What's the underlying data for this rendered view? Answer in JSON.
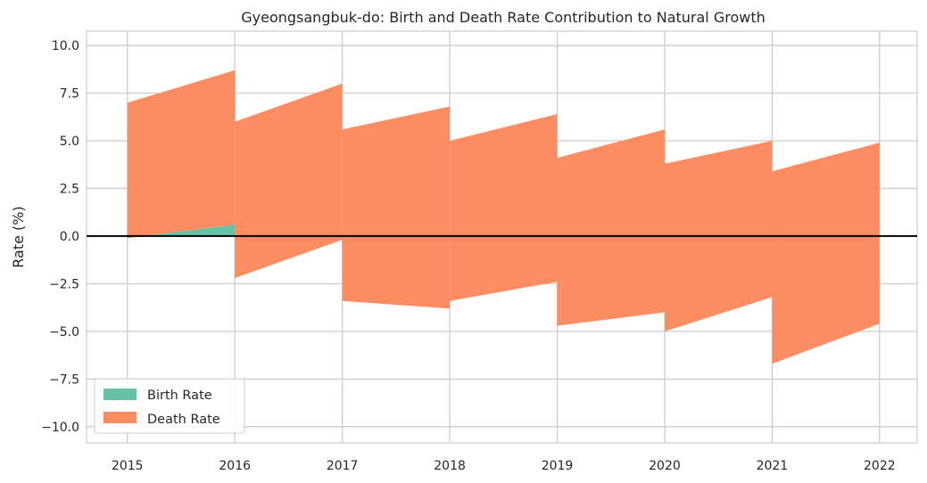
{
  "chart_data": {
    "type": "area",
    "title": "Gyeongsangbuk-do: Birth and Death Rate Contribution to Natural Growth",
    "xlabel": "",
    "ylabel": "Rate (%)",
    "xlim": [
      2014.62,
      2022.35
    ],
    "ylim": [
      -10.85,
      10.75
    ],
    "x_ticks": [
      2015,
      2016,
      2017,
      2018,
      2019,
      2020,
      2021,
      2022
    ],
    "y_ticks": [
      10.0,
      7.5,
      5.0,
      2.5,
      0.0,
      -2.5,
      -5.0,
      -7.5,
      -10.0
    ],
    "y_tick_labels": [
      "10.0",
      "7.5",
      "5.0",
      "2.5",
      "0.0",
      "−2.5",
      "−5.0",
      "−7.5",
      "−10.0"
    ],
    "grid": true,
    "zero_line": true,
    "legend_position": "lower-left",
    "series": [
      {
        "name": "Birth Rate",
        "color": "#66c2a5",
        "segments": [
          {
            "x0": 2015,
            "x1": 2016,
            "lower_start": 0.0,
            "lower_end": 0.0,
            "upper_start": -0.1,
            "upper_end": 0.6
          }
        ]
      },
      {
        "name": "Death Rate",
        "color": "#fc8d62",
        "segments": [
          {
            "x0": 2015,
            "x1": 2016,
            "lower_start": -0.1,
            "lower_end": 0.6,
            "upper_start": 7.0,
            "upper_end": 8.7
          },
          {
            "x0": 2016,
            "x1": 2017,
            "lower_start": -2.2,
            "lower_end": -0.2,
            "upper_start": 6.0,
            "upper_end": 8.0
          },
          {
            "x0": 2017,
            "x1": 2018,
            "lower_start": -3.4,
            "lower_end": -3.8,
            "upper_start": 5.6,
            "upper_end": 6.8
          },
          {
            "x0": 2018,
            "x1": 2019,
            "lower_start": -3.4,
            "lower_end": -2.4,
            "upper_start": 5.0,
            "upper_end": 6.4
          },
          {
            "x0": 2019,
            "x1": 2020,
            "lower_start": -4.7,
            "lower_end": -4.0,
            "upper_start": 4.1,
            "upper_end": 5.6
          },
          {
            "x0": 2020,
            "x1": 2021,
            "lower_start": -5.0,
            "lower_end": -3.2,
            "upper_start": 3.8,
            "upper_end": 5.0
          },
          {
            "x0": 2021,
            "x1": 2022,
            "lower_start": -6.7,
            "lower_end": -4.6,
            "upper_start": 3.4,
            "upper_end": 4.9
          }
        ]
      }
    ]
  }
}
